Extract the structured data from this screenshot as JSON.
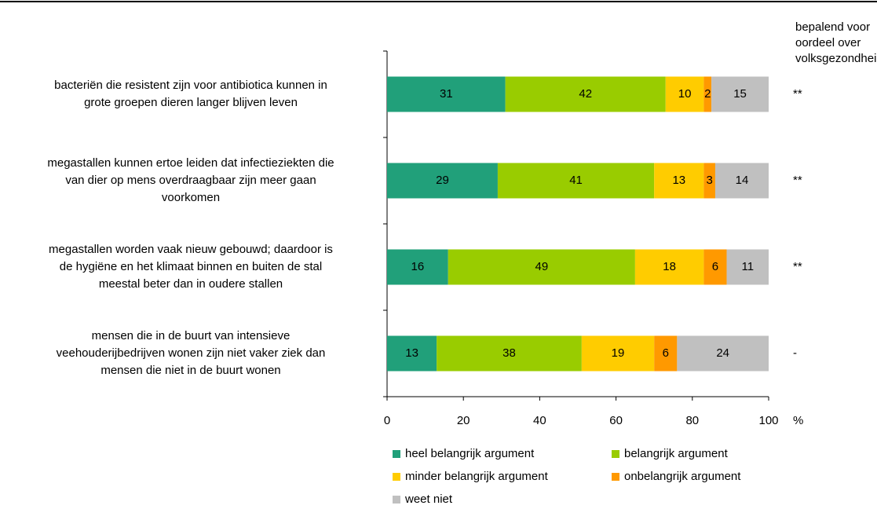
{
  "chart_data": {
    "type": "stacked_bar_horizontal",
    "categories": [
      [
        "bacteriën die resistent zijn voor antibiotica kunnen in",
        "grote groepen dieren langer blijven leven"
      ],
      [
        "megastallen kunnen ertoe leiden dat infectieziekten die",
        "van dier op mens overdraagbaar zijn meer gaan",
        "voorkomen"
      ],
      [
        "megastallen worden vaak nieuw gebouwd; daardoor is",
        "de hygiëne en het klimaat binnen en buiten de stal",
        "meestal beter dan in oudere stallen"
      ],
      [
        "mensen die in de buurt van intensieve",
        "veehouderijbedrijven wonen zijn niet vaker ziek dan",
        "mensen die niet in de buurt wonen"
      ]
    ],
    "series": [
      {
        "name": "heel belangrijk argument",
        "color": "#21a07a",
        "values": [
          31,
          29,
          16,
          13
        ]
      },
      {
        "name": "belangrijk argument",
        "color": "#99cc00",
        "values": [
          42,
          41,
          49,
          38
        ]
      },
      {
        "name": "minder belangrijk argument",
        "color": "#ffcc00",
        "values": [
          10,
          13,
          18,
          19
        ]
      },
      {
        "name": "onbelangrijk argument",
        "color": "#ff9900",
        "values": [
          2,
          3,
          6,
          6
        ]
      },
      {
        "name": "weet niet",
        "color": "#c0c0c0",
        "values": [
          15,
          14,
          11,
          24
        ]
      }
    ],
    "xlim": [
      0,
      100
    ],
    "xticks": [
      0,
      20,
      40,
      60,
      80,
      100
    ],
    "xlabel": "%",
    "annotation_title": [
      "bepalend voor",
      "oordeel over",
      "volksgezondheid"
    ],
    "annotations": [
      "**",
      "**",
      "**",
      "-"
    ]
  }
}
